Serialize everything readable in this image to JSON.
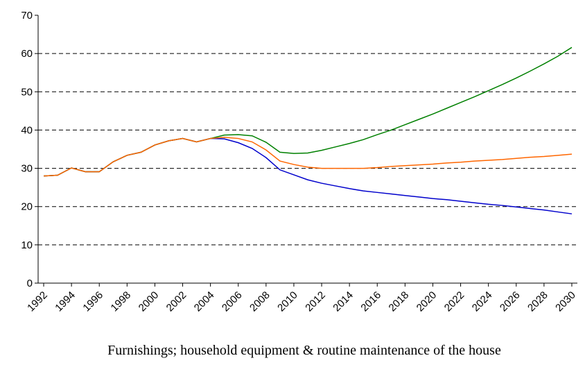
{
  "chart_data": {
    "type": "line",
    "caption": "Furnishings; household equipment & routine maintenance of the house",
    "x": [
      1992,
      1993,
      1994,
      1995,
      1996,
      1997,
      1998,
      1999,
      2000,
      2001,
      2002,
      2003,
      2004,
      2005,
      2006,
      2007,
      2008,
      2009,
      2010,
      2011,
      2012,
      2013,
      2014,
      2015,
      2016,
      2017,
      2018,
      2019,
      2020,
      2021,
      2022,
      2023,
      2024,
      2025,
      2026,
      2027,
      2028,
      2029,
      2030
    ],
    "xlim": [
      1991.6,
      2030.4
    ],
    "xticks": [
      1992,
      1994,
      1996,
      1998,
      2000,
      2002,
      2004,
      2006,
      2008,
      2010,
      2012,
      2014,
      2016,
      2018,
      2020,
      2022,
      2024,
      2026,
      2028,
      2030
    ],
    "ylim": [
      0,
      70
    ],
    "yticks": [
      0,
      10,
      20,
      30,
      40,
      50,
      60,
      70
    ],
    "grid": true,
    "series": [
      {
        "color": "#0000cc",
        "values": [
          28,
          28.2,
          30.1,
          29.1,
          29.1,
          31.7,
          33.4,
          34.2,
          36.1,
          37.2,
          37.8,
          36.9,
          37.8,
          37.7,
          36.7,
          35.2,
          32.8,
          29.6,
          28.3,
          27,
          26.1,
          25.4,
          24.7,
          24.1,
          23.7,
          23.3,
          22.9,
          22.5,
          22.1,
          21.8,
          21.4,
          21.0,
          20.6,
          20.3,
          19.9,
          19.5,
          19.1,
          18.6,
          18.1
        ]
      },
      {
        "color": "#008000",
        "values": [
          28,
          28.2,
          30.1,
          29.1,
          29.1,
          31.7,
          33.4,
          34.2,
          36.1,
          37.2,
          37.8,
          36.9,
          37.8,
          38.7,
          38.8,
          38.5,
          36.8,
          34.2,
          33.9,
          34.0,
          34.7,
          35.6,
          36.5,
          37.5,
          38.8,
          40.0,
          41.4,
          42.8,
          44.2,
          45.7,
          47.2,
          48.7,
          50.3,
          51.9,
          53.6,
          55.4,
          57.3,
          59.3,
          61.6
        ]
      },
      {
        "color": "#ff6600",
        "values": [
          28,
          28.2,
          30.1,
          29.1,
          29.1,
          31.7,
          33.4,
          34.2,
          36.1,
          37.2,
          37.8,
          36.9,
          37.8,
          38.1,
          37.8,
          36.9,
          34.8,
          31.9,
          31.0,
          30.3,
          30.0,
          30.0,
          30.0,
          30.0,
          30.2,
          30.5,
          30.7,
          30.9,
          31.1,
          31.4,
          31.6,
          31.9,
          32.1,
          32.3,
          32.6,
          32.9,
          33.1,
          33.4,
          33.7
        ]
      }
    ]
  }
}
